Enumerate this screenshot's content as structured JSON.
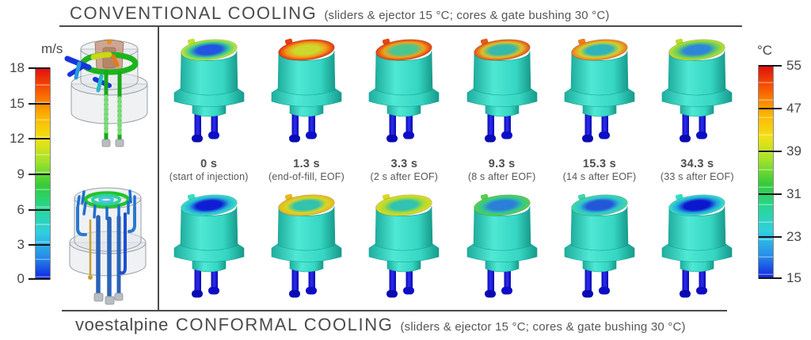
{
  "header": {
    "title": "CONVENTIONAL COOLING",
    "subtitle": "(sliders & ejector 15 °C; cores & gate bushing 30 °C)"
  },
  "footer": {
    "brand": "voestalpine",
    "title": "CONFORMAL COOLING",
    "subtitle": "(sliders & ejector 15 °C; cores & gate bushing 30 °C)"
  },
  "scales": {
    "velocity": {
      "unit": "m/s",
      "min": 0,
      "max": 18,
      "ticks": [
        "18",
        "15",
        "12",
        "9",
        "6",
        "3",
        "0"
      ],
      "gradient": [
        "#e10f0f",
        "#f75c00",
        "#fdb100",
        "#f2e114",
        "#9fe32a",
        "#35cb3a",
        "#26d795",
        "#31cfe0",
        "#2791ea",
        "#1023df"
      ]
    },
    "temperature": {
      "unit": "°C",
      "min": 15,
      "max": 55,
      "ticks": [
        "55",
        "47",
        "39",
        "31",
        "23",
        "15"
      ],
      "gradient": [
        "#e10f0f",
        "#f75c00",
        "#fdb100",
        "#f2e114",
        "#9fe32a",
        "#35cb3a",
        "#26d795",
        "#31cfe0",
        "#2791ea",
        "#1023df"
      ]
    }
  },
  "timeline": [
    {
      "time": "0 s",
      "desc": "(start of injection)"
    },
    {
      "time": "1.3 s",
      "desc": "(end-of-fill, EOF)"
    },
    {
      "time": "3.3 s",
      "desc": "(2 s after EOF)"
    },
    {
      "time": "9.3 s",
      "desc": "(8 s after EOF)"
    },
    {
      "time": "15.3 s",
      "desc": "(14 s after EOF)"
    },
    {
      "time": "34.3 s",
      "desc": "(33 s after EOF)"
    }
  ],
  "part_colors": {
    "body": "#38dcc8",
    "legs": "#1414d8"
  },
  "parts": {
    "conventional": [
      {
        "rim": "#c0e232",
        "mid": "#3ecf90",
        "center": "#2256e2"
      },
      {
        "rim": "#e63c10",
        "mid": "#f09a1a",
        "center": "#ccd82c"
      },
      {
        "rim": "#e64512",
        "mid": "#eda41c",
        "center": "#4cc690"
      },
      {
        "rim": "#e8581a",
        "mid": "#dcc226",
        "center": "#35b9ab"
      },
      {
        "rim": "#ef7d1e",
        "mid": "#ced32c",
        "center": "#2fb3bc"
      },
      {
        "rim": "#bcdc2e",
        "mid": "#68cf5e",
        "center": "#2e86d8"
      }
    ],
    "conformal": [
      {
        "rim": "#35dcc6",
        "mid": "#28b0da",
        "center": "#0f1ed4"
      },
      {
        "rim": "#e8b81e",
        "mid": "#d6d626",
        "center": "#32c2ae"
      },
      {
        "rim": "#dcd826",
        "mid": "#aadc30",
        "center": "#32c2b2"
      },
      {
        "rim": "#56cf4e",
        "mid": "#30c49c",
        "center": "#2b7fd8"
      },
      {
        "rim": "#3fd6a8",
        "mid": "#2fc4cf",
        "center": "#2457d8"
      },
      {
        "rim": "#35dcc6",
        "mid": "#22a2df",
        "center": "#0c16cc"
      }
    ]
  }
}
